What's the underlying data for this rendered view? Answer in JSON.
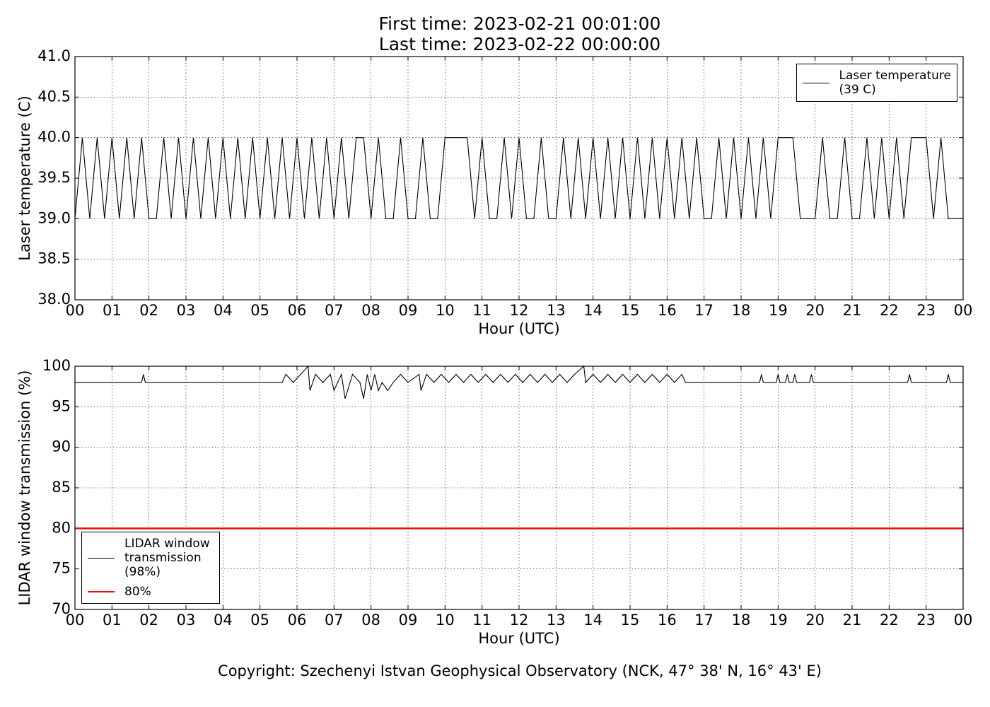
{
  "footer": "Copyright: Szechenyi Istvan Geophysical Observatory (NCK, 47° 38' N, 16° 43' E)",
  "chart_data": [
    {
      "type": "line",
      "title": "First time: 2023-02-21 00:01:00",
      "subtitle": "Last time: 2023-02-22 00:00:00",
      "xlabel": "Hour (UTC)",
      "ylabel": "Laser temperature (C)",
      "grid": true,
      "legend": "upper right",
      "xlim": [
        0,
        24
      ],
      "ylim": [
        38,
        41
      ],
      "xticks": [
        {
          "value": 0,
          "label": "00"
        },
        {
          "value": 1,
          "label": "01"
        },
        {
          "value": 2,
          "label": "02"
        },
        {
          "value": 3,
          "label": "03"
        },
        {
          "value": 4,
          "label": "04"
        },
        {
          "value": 5,
          "label": "05"
        },
        {
          "value": 6,
          "label": "06"
        },
        {
          "value": 7,
          "label": "07"
        },
        {
          "value": 8,
          "label": "08"
        },
        {
          "value": 9,
          "label": "09"
        },
        {
          "value": 10,
          "label": "10"
        },
        {
          "value": 11,
          "label": "11"
        },
        {
          "value": 12,
          "label": "12"
        },
        {
          "value": 13,
          "label": "13"
        },
        {
          "value": 14,
          "label": "14"
        },
        {
          "value": 15,
          "label": "15"
        },
        {
          "value": 16,
          "label": "16"
        },
        {
          "value": 17,
          "label": "17"
        },
        {
          "value": 18,
          "label": "18"
        },
        {
          "value": 19,
          "label": "19"
        },
        {
          "value": 20,
          "label": "20"
        },
        {
          "value": 21,
          "label": "21"
        },
        {
          "value": 22,
          "label": "22"
        },
        {
          "value": 23,
          "label": "23"
        },
        {
          "value": 24,
          "label": "00"
        }
      ],
      "yticks": [
        {
          "value": 38,
          "label": "38.0"
        },
        {
          "value": 38.5,
          "label": "38.5"
        },
        {
          "value": 39,
          "label": "39.0"
        },
        {
          "value": 39.5,
          "label": "39.5"
        },
        {
          "value": 40,
          "label": "40.0"
        },
        {
          "value": 40.5,
          "label": "40.5"
        },
        {
          "value": 41,
          "label": "41.0"
        }
      ],
      "series": [
        {
          "name": "Laser temperature\n(39 C)",
          "color": "#000000",
          "x": [
            0,
            0.2,
            0.4,
            0.6,
            0.8,
            1,
            1.2,
            1.4,
            1.6,
            1.8,
            2,
            2.2,
            2.4,
            2.6,
            2.8,
            3,
            3.2,
            3.4,
            3.6,
            3.8,
            4,
            4.2,
            4.4,
            4.6,
            4.8,
            5,
            5.2,
            5.4,
            5.6,
            5.8,
            6,
            6.2,
            6.4,
            6.6,
            6.8,
            7,
            7.2,
            7.4,
            7.6,
            7.8,
            8,
            8.2,
            8.4,
            8.6,
            8.8,
            9,
            9.2,
            9.4,
            9.6,
            9.8,
            10,
            10.2,
            10.4,
            10.6,
            10.8,
            11,
            11.2,
            11.4,
            11.6,
            11.8,
            12,
            12.2,
            12.4,
            12.6,
            12.8,
            13,
            13.2,
            13.4,
            13.6,
            13.8,
            14,
            14.2,
            14.4,
            14.6,
            14.8,
            15,
            15.2,
            15.4,
            15.6,
            15.8,
            16,
            16.2,
            16.4,
            16.6,
            16.8,
            17,
            17.2,
            17.4,
            17.6,
            17.8,
            18,
            18.2,
            18.4,
            18.6,
            18.8,
            19,
            19.2,
            19.4,
            19.6,
            19.8,
            20,
            20.2,
            20.4,
            20.6,
            20.8,
            21,
            21.2,
            21.4,
            21.6,
            21.8,
            22,
            22.2,
            22.4,
            22.6,
            22.8,
            23,
            23.2,
            23.4,
            23.6,
            23.8,
            24
          ],
          "values": [
            39,
            40,
            39,
            40,
            39,
            40,
            39,
            40,
            39,
            40,
            39,
            39,
            40,
            39,
            40,
            39,
            40,
            39,
            40,
            39,
            40,
            39,
            40,
            39,
            40,
            39,
            40,
            39,
            40,
            39,
            40,
            39,
            40,
            39,
            40,
            39,
            40,
            39,
            40,
            40,
            39,
            40,
            39,
            39,
            40,
            39,
            39,
            40,
            39,
            39,
            40,
            40,
            40,
            40,
            39,
            40,
            39,
            39,
            40,
            39,
            40,
            39,
            39,
            40,
            39,
            39,
            40,
            39,
            40,
            39,
            40,
            39,
            40,
            39,
            40,
            39,
            40,
            39,
            40,
            39,
            40,
            39,
            40,
            39,
            40,
            39,
            39,
            40,
            39,
            40,
            39,
            40,
            39,
            40,
            39,
            40,
            40,
            40,
            39,
            39,
            39,
            40,
            39,
            39,
            40,
            39,
            39,
            40,
            39,
            40,
            39,
            40,
            39,
            40,
            40,
            40,
            39,
            40,
            39,
            39,
            39
          ]
        }
      ]
    },
    {
      "type": "line",
      "xlabel": "Hour (UTC)",
      "ylabel": "LIDAR window transmission (%)",
      "grid": true,
      "legend": "lower left",
      "xlim": [
        0,
        24
      ],
      "ylim": [
        70,
        100
      ],
      "xticks": [
        {
          "value": 0,
          "label": "00"
        },
        {
          "value": 1,
          "label": "01"
        },
        {
          "value": 2,
          "label": "02"
        },
        {
          "value": 3,
          "label": "03"
        },
        {
          "value": 4,
          "label": "04"
        },
        {
          "value": 5,
          "label": "05"
        },
        {
          "value": 6,
          "label": "06"
        },
        {
          "value": 7,
          "label": "07"
        },
        {
          "value": 8,
          "label": "08"
        },
        {
          "value": 9,
          "label": "09"
        },
        {
          "value": 10,
          "label": "10"
        },
        {
          "value": 11,
          "label": "11"
        },
        {
          "value": 12,
          "label": "12"
        },
        {
          "value": 13,
          "label": "13"
        },
        {
          "value": 14,
          "label": "14"
        },
        {
          "value": 15,
          "label": "15"
        },
        {
          "value": 16,
          "label": "16"
        },
        {
          "value": 17,
          "label": "17"
        },
        {
          "value": 18,
          "label": "18"
        },
        {
          "value": 19,
          "label": "19"
        },
        {
          "value": 20,
          "label": "20"
        },
        {
          "value": 21,
          "label": "21"
        },
        {
          "value": 22,
          "label": "22"
        },
        {
          "value": 23,
          "label": "23"
        },
        {
          "value": 24,
          "label": "00"
        }
      ],
      "yticks": [
        70,
        75,
        80,
        85,
        90,
        95,
        100
      ],
      "series": [
        {
          "name": "LIDAR window\ntransmission\n(98%)",
          "color": "#000000",
          "x": [
            0,
            1.8,
            1.85,
            1.9,
            5.6,
            5.7,
            5.9,
            6.1,
            6.3,
            6.35,
            6.5,
            6.7,
            6.9,
            7.0,
            7.2,
            7.3,
            7.5,
            7.7,
            7.8,
            7.9,
            8.0,
            8.1,
            8.2,
            8.3,
            8.45,
            8.6,
            8.8,
            9.0,
            9.3,
            9.35,
            9.5,
            9.7,
            9.9,
            10.1,
            10.3,
            10.5,
            10.7,
            10.9,
            11.1,
            11.3,
            11.5,
            11.7,
            11.9,
            12.1,
            12.3,
            12.5,
            12.7,
            12.9,
            13.1,
            13.3,
            13.5,
            13.75,
            13.8,
            14.0,
            14.2,
            14.4,
            14.6,
            14.8,
            15.0,
            15.2,
            15.4,
            15.6,
            15.8,
            16.0,
            16.2,
            16.4,
            16.5,
            18.5,
            18.55,
            18.6,
            18.95,
            19.0,
            19.05,
            19.2,
            19.25,
            19.3,
            19.4,
            19.45,
            19.5,
            19.85,
            19.9,
            19.95,
            22.5,
            22.55,
            22.6,
            23.55,
            23.6,
            23.65,
            24
          ],
          "values": [
            98,
            98,
            99,
            98,
            98,
            99,
            98,
            99,
            100,
            97,
            99,
            98,
            99,
            97,
            99,
            96,
            99,
            98,
            96,
            99,
            97,
            99,
            97,
            98,
            97,
            98,
            99,
            98,
            99,
            97,
            99,
            98,
            99,
            98,
            99,
            98,
            99,
            98,
            99,
            98,
            99,
            98,
            99,
            98,
            99,
            98,
            99,
            98,
            99,
            98,
            99,
            100,
            98,
            99,
            98,
            99,
            98,
            99,
            98,
            99,
            98,
            99,
            98,
            99,
            98,
            99,
            98,
            98,
            99,
            98,
            98,
            99,
            98,
            98,
            99,
            98,
            98,
            99,
            98,
            98,
            99,
            98,
            98,
            99,
            98,
            98,
            99,
            98,
            98
          ]
        },
        {
          "name": "80%",
          "color": "#e8110f",
          "x": [
            0,
            24
          ],
          "values": [
            80,
            80
          ]
        }
      ]
    }
  ]
}
